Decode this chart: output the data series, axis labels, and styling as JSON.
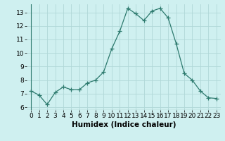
{
  "x": [
    0,
    1,
    2,
    3,
    4,
    5,
    6,
    7,
    8,
    9,
    10,
    11,
    12,
    13,
    14,
    15,
    16,
    17,
    18,
    19,
    20,
    21,
    22,
    23
  ],
  "y": [
    7.2,
    6.9,
    6.2,
    7.1,
    7.5,
    7.3,
    7.3,
    7.8,
    8.0,
    8.6,
    10.3,
    11.6,
    13.3,
    12.9,
    12.4,
    13.1,
    13.3,
    12.6,
    10.7,
    8.5,
    8.0,
    7.2,
    6.7,
    6.65
  ],
  "xlabel": "Humidex (Indice chaleur)",
  "ylim": [
    5.8,
    13.6
  ],
  "xlim": [
    -0.5,
    23.5
  ],
  "yticks": [
    6,
    7,
    8,
    9,
    10,
    11,
    12,
    13
  ],
  "xticks": [
    0,
    1,
    2,
    3,
    4,
    5,
    6,
    7,
    8,
    9,
    10,
    11,
    12,
    13,
    14,
    15,
    16,
    17,
    18,
    19,
    20,
    21,
    22,
    23
  ],
  "line_color": "#2d7a6e",
  "marker": "+",
  "marker_size": 4,
  "bg_color": "#cff0f0",
  "grid_color": "#b0d8d8",
  "tick_label_fontsize": 6.5,
  "xlabel_fontsize": 7.5
}
